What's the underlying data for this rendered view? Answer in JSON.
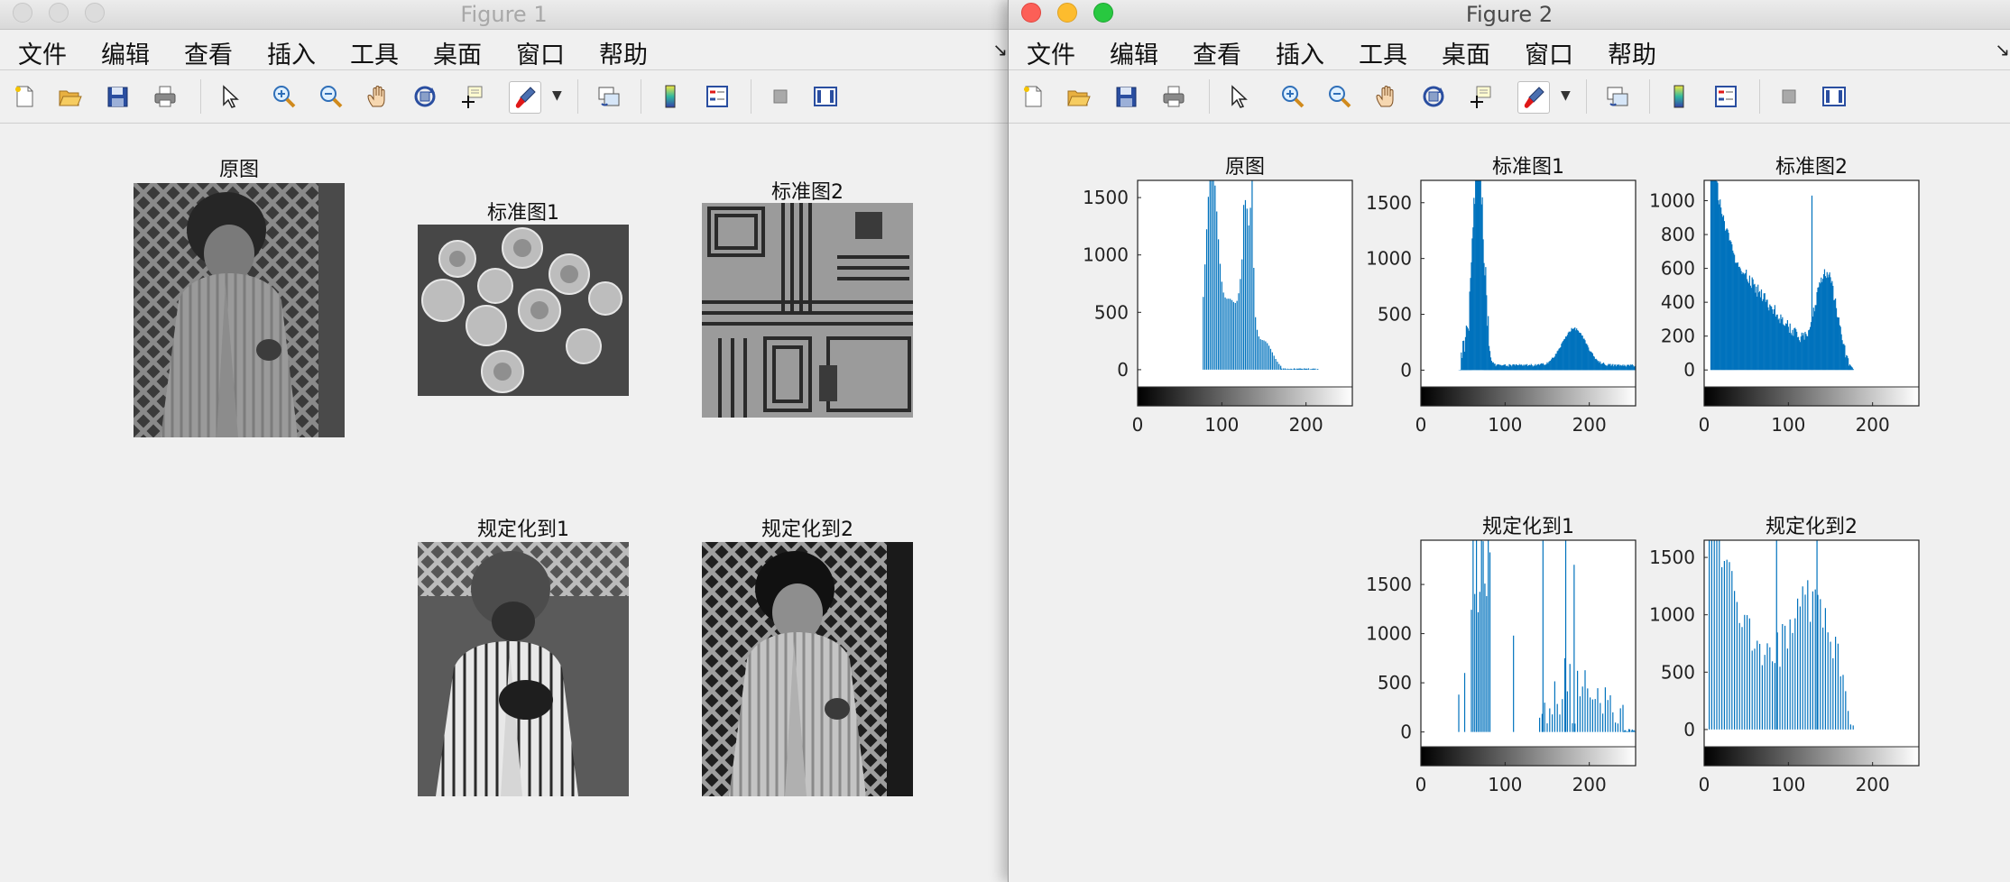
{
  "figure1": {
    "title": "Figure 1",
    "menu": [
      "文件",
      "编辑",
      "查看",
      "插入",
      "工具",
      "桌面",
      "窗口",
      "帮助"
    ],
    "images": [
      {
        "title": "原图",
        "content": "grayscale photo of a child in a jacket in front of a lattice"
      },
      {
        "title": "标准图1",
        "content": "grayscale photo of coins on a dark background"
      },
      {
        "title": "标准图2",
        "content": "grayscale photo of a circuit board"
      },
      {
        "title": "规定化到1",
        "content": "high-contrast version of the child photo"
      },
      {
        "title": "规定化到2",
        "content": "contrast-adjusted version of the child photo"
      }
    ]
  },
  "figure2": {
    "title": "Figure 2",
    "menu": [
      "文件",
      "编辑",
      "查看",
      "插入",
      "工具",
      "桌面",
      "窗口",
      "帮助"
    ],
    "chart_data": [
      {
        "type": "bar",
        "title": "原图",
        "xlim": [
          0,
          255
        ],
        "ylim": [
          -150,
          1650
        ],
        "yticks": [
          0,
          500,
          1000,
          1500
        ],
        "xticks": [
          0,
          100,
          200
        ],
        "colorbar": "grayscale"
      },
      {
        "type": "bar",
        "title": "标准图1",
        "xlim": [
          0,
          255
        ],
        "ylim": [
          -150,
          1700
        ],
        "yticks": [
          0,
          500,
          1000,
          1500
        ],
        "xticks": [
          0,
          100,
          200
        ],
        "colorbar": "grayscale"
      },
      {
        "type": "bar",
        "title": "标准图2",
        "xlim": [
          0,
          255
        ],
        "ylim": [
          -100,
          1120
        ],
        "yticks": [
          0,
          200,
          400,
          600,
          800,
          1000
        ],
        "xticks": [
          0,
          100,
          200
        ],
        "colorbar": "grayscale"
      },
      {
        "type": "bar",
        "title": "规定化到1",
        "xlim": [
          0,
          255
        ],
        "ylim": [
          -150,
          1950
        ],
        "yticks": [
          0,
          500,
          1000,
          1500
        ],
        "xticks": [
          0,
          100,
          200
        ],
        "colorbar": "grayscale"
      },
      {
        "type": "bar",
        "title": "规定化到2",
        "xlim": [
          0,
          255
        ],
        "ylim": [
          -150,
          1650
        ],
        "yticks": [
          0,
          500,
          1000,
          1500
        ],
        "xticks": [
          0,
          100,
          200
        ],
        "colorbar": "grayscale"
      }
    ]
  },
  "toolbar_icons": [
    "new-figure-icon",
    "open-file-icon",
    "save-icon",
    "print-icon",
    "select-pointer-icon",
    "zoom-in-icon",
    "zoom-out-icon",
    "pan-hand-icon",
    "rotate-3d-icon",
    "data-cursor-icon",
    "brush-icon",
    "link-plot-icon",
    "colorbar-icon",
    "legend-icon",
    "hide-plot-tools-icon",
    "show-plot-tools-icon"
  ],
  "colors": {
    "bar": "#0072bd",
    "window_bg": "#f0f0f0",
    "close": "#fc5f57",
    "minimize": "#fdbc2e",
    "zoom": "#28c840"
  }
}
